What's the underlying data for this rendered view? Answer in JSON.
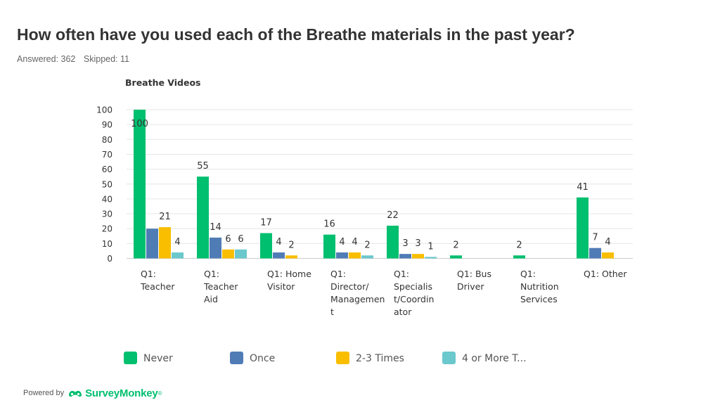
{
  "page": {
    "title": "How often have you used each of the Breathe materials in the past year?",
    "answered": "Answered: 362",
    "skipped": "Skipped: 11"
  },
  "footer": {
    "powered_by": "Powered by",
    "brand": "SurveyMonkey",
    "trademark": "®",
    "logo_icon": "surveymonkey-logo-icon"
  },
  "chart_data": {
    "type": "bar",
    "title": "Breathe Videos",
    "xlabel": "",
    "ylabel": "",
    "ylim": [
      0,
      100
    ],
    "yticks": [
      0,
      10,
      20,
      30,
      40,
      50,
      60,
      70,
      80,
      90,
      100
    ],
    "grid": true,
    "legend_position": "bottom",
    "categories": [
      [
        "Q1:",
        "Teacher"
      ],
      [
        "Q1:",
        "Teacher",
        "Aid"
      ],
      [
        "Q1: Home",
        "Visitor"
      ],
      [
        "Q1:",
        "Director/",
        "Managemen",
        "t"
      ],
      [
        "Q1:",
        "Specialis",
        "t/Coordin",
        "ator"
      ],
      [
        "Q1: Bus",
        "Driver"
      ],
      [
        "Q1:",
        "Nutrition",
        "Services"
      ],
      [
        "Q1: Other"
      ]
    ],
    "series": [
      {
        "name": "Never",
        "color": "#00bf6f",
        "values": [
          100,
          55,
          17,
          16,
          22,
          2,
          2,
          41
        ]
      },
      {
        "name": "Once",
        "color": "#507cb6",
        "values": [
          20,
          14,
          4,
          4,
          3,
          null,
          null,
          7
        ]
      },
      {
        "name": "2-3 Times",
        "color": "#f9be00",
        "values": [
          21,
          6,
          2,
          4,
          3,
          null,
          null,
          4
        ]
      },
      {
        "name": "4 or More T...",
        "color": "#6bc8cd",
        "values": [
          4,
          6,
          null,
          2,
          1,
          null,
          null,
          null
        ]
      }
    ],
    "data_labels": [
      [
        "100",
        "",
        "21",
        "4"
      ],
      [
        "55",
        "14",
        "6",
        "6"
      ],
      [
        "17",
        "4",
        "2",
        ""
      ],
      [
        "16",
        "4",
        "4",
        "2"
      ],
      [
        "22",
        "3",
        "3",
        "1"
      ],
      [
        "2",
        "",
        "",
        ""
      ],
      [
        "2",
        "",
        "",
        ""
      ],
      [
        "41",
        "7",
        "4",
        ""
      ]
    ]
  }
}
